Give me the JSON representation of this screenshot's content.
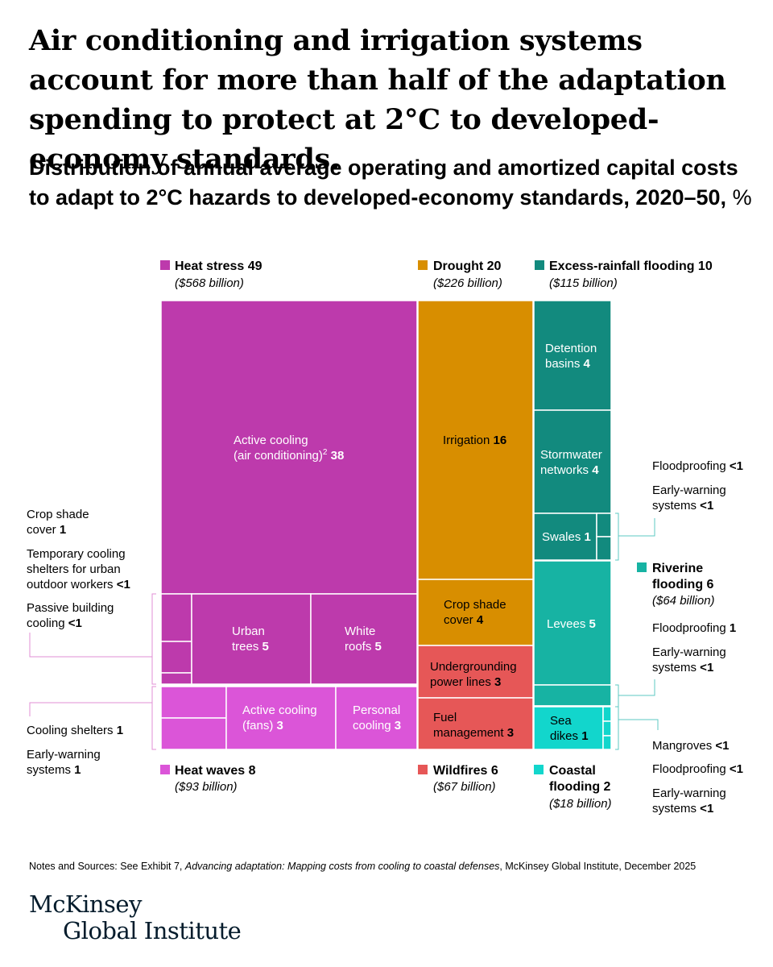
{
  "headline": "Air conditioning and irrigation systems account for more than half of the adaptation spending to protect at 2°C to developed-economy standards.",
  "subtitle": "Distribution of annual average operating and amortized capital costs to adapt to 2°C hazards to developed-economy standards, 2020–50,",
  "subtitle_unit": "%",
  "notes_prefix": "Notes and Sources: See Exhibit 7, ",
  "notes_title": "Advancing adaptation: Mapping costs from cooling to coastal defenses",
  "notes_suffix": ", McKinsey Global Institute, December 2025",
  "logo_line1": "McKinsey",
  "logo_line2": "Global Institute",
  "chart_data": {
    "type": "treemap",
    "unit": "%",
    "colors": {
      "heat_stress": "#bd3aac",
      "heat_waves": "#db55d8",
      "drought": "#d88e00",
      "wildfires": "#e65757",
      "excess_rainfall": "#128a7e",
      "riverine": "#17b3a3",
      "coastal": "#12d6cc",
      "leader": "#e08fd6",
      "leader_teal": "#5cc9c3"
    },
    "groups": [
      {
        "key": "heat_stress",
        "name": "Heat stress",
        "value": "49",
        "cost": "($568 billion)",
        "color": "#bd3aac",
        "items": [
          {
            "label_lines": [
              "Active cooling",
              "(air conditioning)"
            ],
            "sup": "2",
            "value": "38"
          },
          {
            "label_lines": [
              "Urban",
              "trees"
            ],
            "value": "5"
          },
          {
            "label_lines": [
              "White",
              "roofs"
            ],
            "value": "5"
          },
          {
            "label_lines": [
              "Crop shade",
              "cover"
            ],
            "value": "1"
          },
          {
            "label_lines": [
              "Temporary cooling",
              "shelters for urban",
              "outdoor workers"
            ],
            "value": "<1"
          },
          {
            "label_lines": [
              "Passive building",
              "cooling"
            ],
            "value": "<1"
          }
        ]
      },
      {
        "key": "heat_waves",
        "name": "Heat waves",
        "value": "8",
        "cost": "($93 billion)",
        "color": "#db55d8",
        "items": [
          {
            "label_lines": [
              "Active cooling",
              "(fans)"
            ],
            "value": "3"
          },
          {
            "label_lines": [
              "Personal",
              "cooling"
            ],
            "value": "3"
          },
          {
            "label_lines": [
              "Cooling shelters"
            ],
            "value": "1"
          },
          {
            "label_lines": [
              "Early-warning",
              "systems"
            ],
            "value": "1"
          }
        ]
      },
      {
        "key": "drought",
        "name": "Drought",
        "value": "20",
        "cost": "($226 billion)",
        "color": "#d88e00",
        "items": [
          {
            "label_lines": [
              "Irrigation"
            ],
            "value": "16"
          },
          {
            "label_lines": [
              "Crop shade",
              "cover"
            ],
            "value": "4"
          }
        ]
      },
      {
        "key": "wildfires",
        "name": "Wildfires",
        "value": "6",
        "cost": "($67 billion)",
        "color": "#e65757",
        "items": [
          {
            "label_lines": [
              "Undergrounding",
              "power lines"
            ],
            "value": "3"
          },
          {
            "label_lines": [
              "Fuel",
              "management"
            ],
            "value": "3"
          }
        ]
      },
      {
        "key": "excess_rainfall",
        "name": "Excess-rainfall flooding",
        "value": "10",
        "cost": "($115 billion)",
        "color": "#128a7e",
        "items": [
          {
            "label_lines": [
              "Detention",
              "basins"
            ],
            "value": "4"
          },
          {
            "label_lines": [
              "Stormwater",
              "networks"
            ],
            "value": "4"
          },
          {
            "label_lines": [
              "Swales"
            ],
            "value": "1"
          },
          {
            "label_lines": [
              "Floodproofing"
            ],
            "value": "<1"
          },
          {
            "label_lines": [
              "Early-warning",
              "systems"
            ],
            "value": "<1"
          }
        ]
      },
      {
        "key": "riverine",
        "name_lines": [
          "Riverine",
          "flooding"
        ],
        "value": "6",
        "cost": "($64 billion)",
        "color": "#17b3a3",
        "items": [
          {
            "label_lines": [
              "Levees"
            ],
            "value": "5"
          },
          {
            "label_lines": [
              "Floodproofing"
            ],
            "value": "1"
          },
          {
            "label_lines": [
              "Early-warning",
              "systems"
            ],
            "value": "<1"
          }
        ]
      },
      {
        "key": "coastal",
        "name_lines": [
          "Coastal",
          "flooding"
        ],
        "value": "2",
        "cost": "($18 billion)",
        "color": "#12d6cc",
        "items": [
          {
            "label_lines": [
              "Sea",
              "dikes"
            ],
            "value": "1"
          },
          {
            "label_lines": [
              "Mangroves"
            ],
            "value": "<1"
          },
          {
            "label_lines": [
              "Floodproofing"
            ],
            "value": "<1"
          },
          {
            "label_lines": [
              "Early-warning",
              "systems"
            ],
            "value": "<1"
          }
        ]
      }
    ]
  }
}
